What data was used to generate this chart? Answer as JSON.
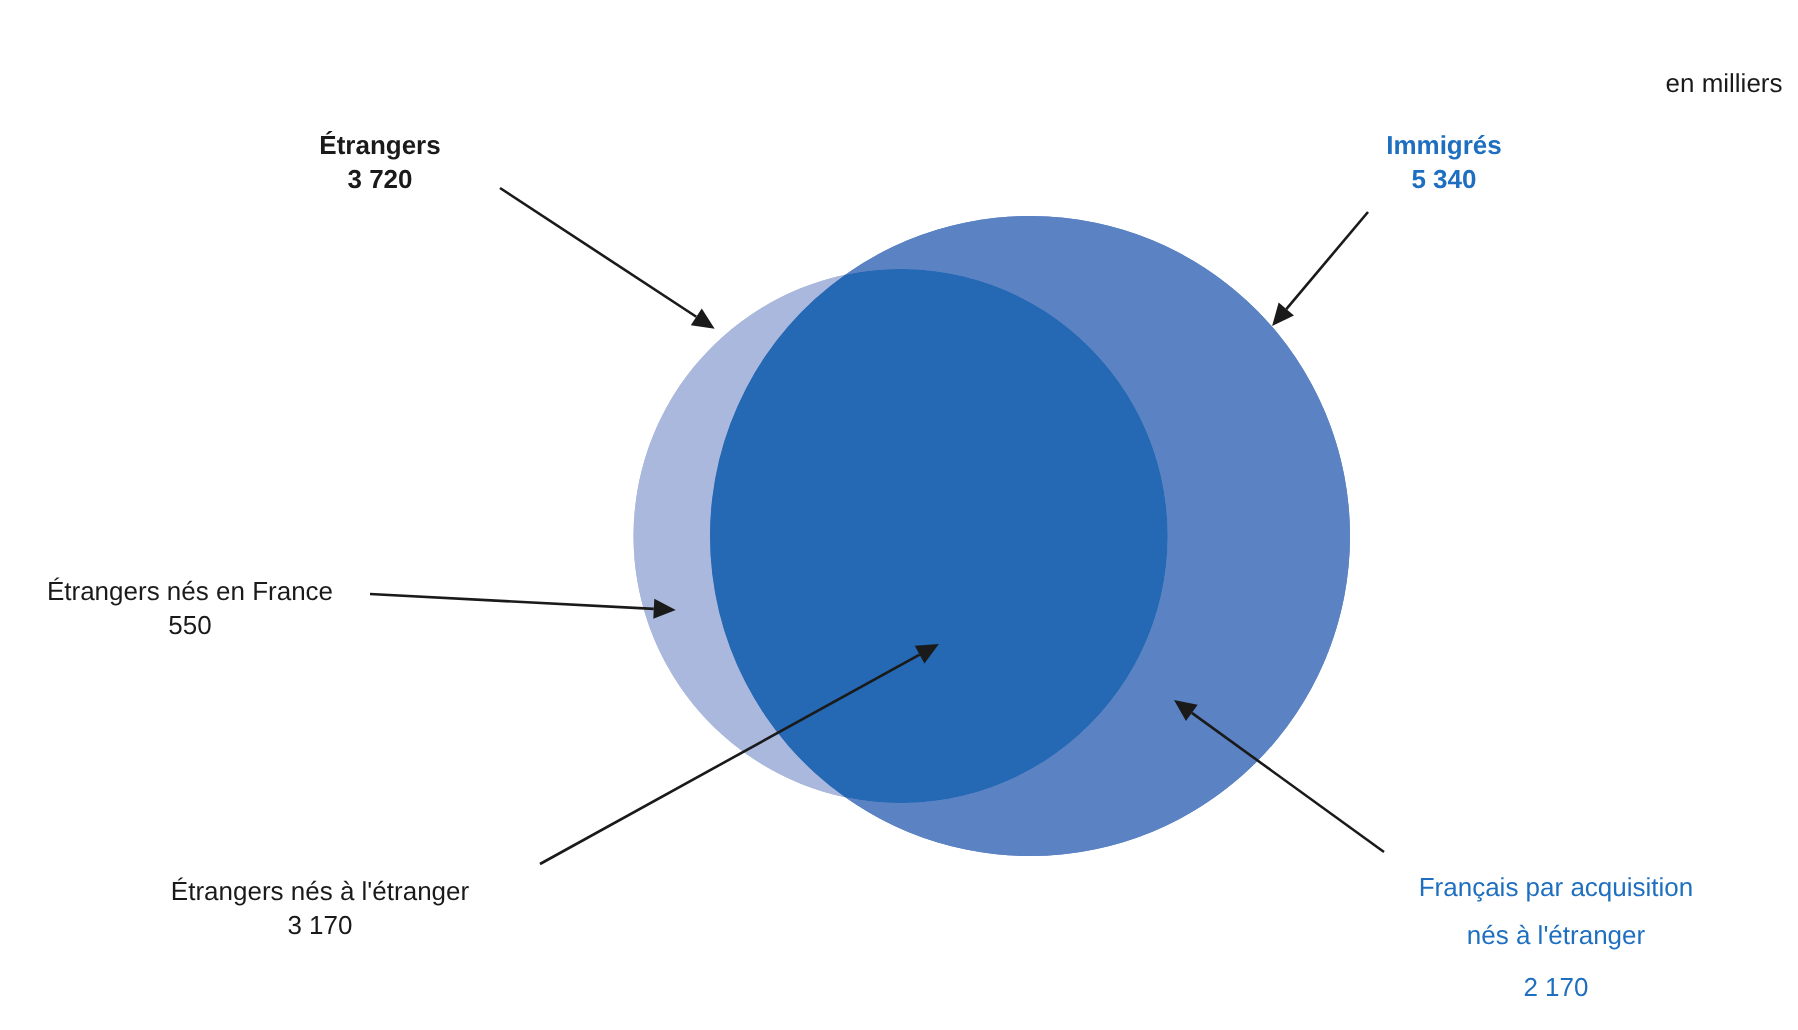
{
  "chart_data": {
    "type": "other",
    "subtitle": "en milliers",
    "categories": [
      "Étrangers",
      "Immigrés",
      "Étrangers nés en France",
      "Étrangers nés à l'étranger",
      "Français par acquisition nés à l'étranger"
    ],
    "values": [
      3720,
      5340,
      550,
      3170,
      2170
    ],
    "value_labels": [
      "3 720",
      "5 340",
      "550",
      "3 170",
      "2 170"
    ],
    "colors": [
      "#a9b8dc",
      "#5b83c4",
      "#a9b8dc",
      "#2568b3",
      "#5b83c4"
    ]
  }
}
